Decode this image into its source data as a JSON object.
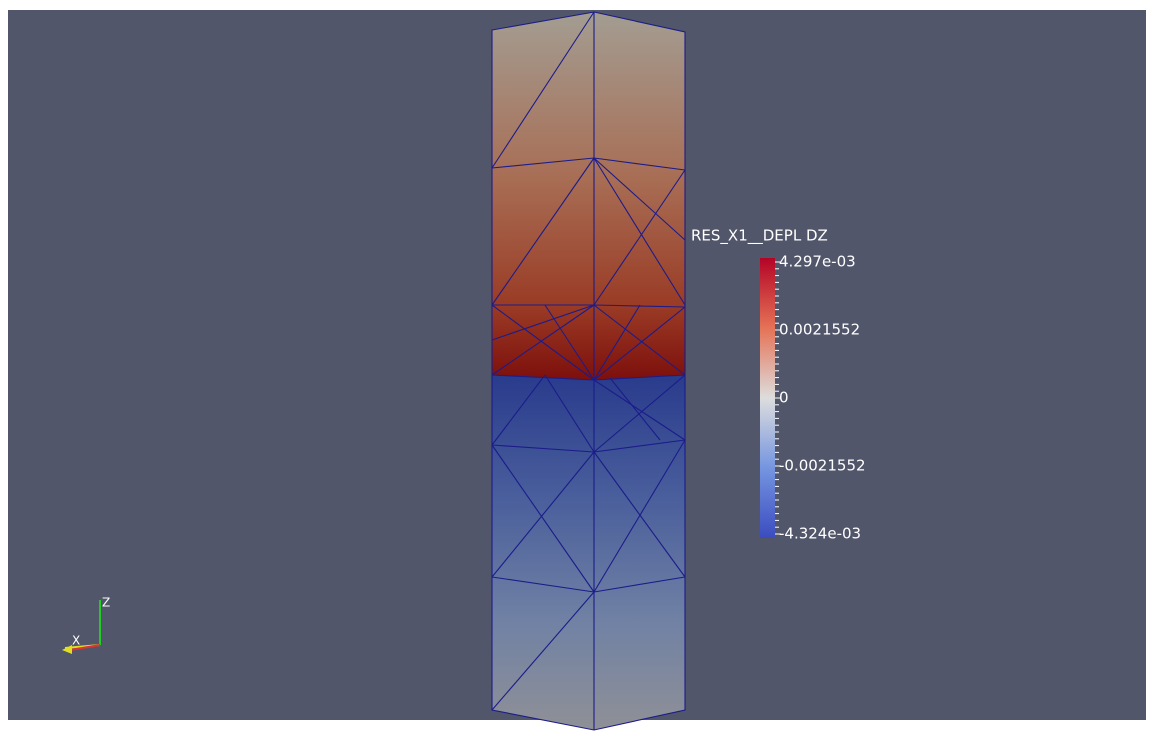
{
  "colorbar": {
    "title": "RES_X1__DEPL DZ",
    "labels": [
      "4.297e-03",
      "0.0021552",
      "0",
      "-0.0021552",
      "-4.324e-03"
    ]
  },
  "axes": {
    "z": "Z",
    "x": "X"
  }
}
